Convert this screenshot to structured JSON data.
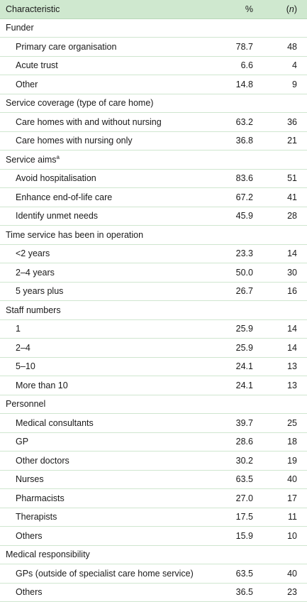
{
  "header": {
    "characteristic": "Characteristic",
    "pct": "%",
    "n_open": "(",
    "n": "n",
    "n_close": ")"
  },
  "sections": [
    {
      "title": "Funder",
      "sup": "",
      "rows": [
        {
          "label": "Primary care organisation",
          "pct": "78.7",
          "n": "48"
        },
        {
          "label": "Acute trust",
          "pct": "6.6",
          "n": "4"
        },
        {
          "label": "Other",
          "pct": "14.8",
          "n": "9"
        }
      ]
    },
    {
      "title": "Service coverage (type of care home)",
      "sup": "",
      "rows": [
        {
          "label": "Care homes with and without nursing",
          "pct": "63.2",
          "n": "36"
        },
        {
          "label": "Care homes with nursing only",
          "pct": "36.8",
          "n": "21"
        }
      ]
    },
    {
      "title": "Service aims",
      "sup": "a",
      "rows": [
        {
          "label": "Avoid hospitalisation",
          "pct": "83.6",
          "n": "51"
        },
        {
          "label": "Enhance end-of-life care",
          "pct": "67.2",
          "n": "41"
        },
        {
          "label": "Identify unmet needs",
          "pct": "45.9",
          "n": "28"
        }
      ]
    },
    {
      "title": "Time service has been in operation",
      "sup": "",
      "rows": [
        {
          "label": "<2 years",
          "pct": "23.3",
          "n": "14"
        },
        {
          "label": "2–4 years",
          "pct": "50.0",
          "n": "30"
        },
        {
          "label": "5 years plus",
          "pct": "26.7",
          "n": "16"
        }
      ]
    },
    {
      "title": "Staff numbers",
      "sup": "",
      "rows": [
        {
          "label": "1",
          "pct": "25.9",
          "n": "14"
        },
        {
          "label": "2–4",
          "pct": "25.9",
          "n": "14"
        },
        {
          "label": "5–10",
          "pct": "24.1",
          "n": "13"
        },
        {
          "label": "More than 10",
          "pct": "24.1",
          "n": "13"
        }
      ]
    },
    {
      "title": "Personnel",
      "sup": "",
      "rows": [
        {
          "label": "Medical consultants",
          "pct": "39.7",
          "n": "25"
        },
        {
          "label": "GP",
          "pct": "28.6",
          "n": "18"
        },
        {
          "label": "Other doctors",
          "pct": "30.2",
          "n": "19"
        },
        {
          "label": "Nurses",
          "pct": "63.5",
          "n": "40"
        },
        {
          "label": "Pharmacists",
          "pct": "27.0",
          "n": "17"
        },
        {
          "label": "Therapists",
          "pct": "17.5",
          "n": "11"
        },
        {
          "label": "Others",
          "pct": "15.9",
          "n": "10"
        }
      ]
    },
    {
      "title": "Medical responsibility",
      "sup": "",
      "rows": [
        {
          "label": "GPs (outside of specialist care home service)",
          "pct": "63.5",
          "n": "40"
        },
        {
          "label": "Others",
          "pct": "36.5",
          "n": "23"
        }
      ]
    }
  ]
}
